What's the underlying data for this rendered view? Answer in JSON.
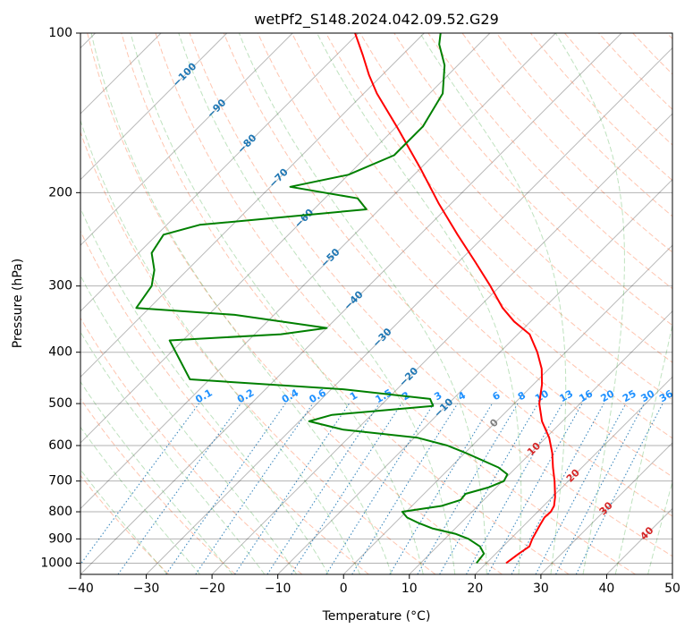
{
  "chart_data": {
    "type": "skew-t",
    "title": "wetPf2_S148.2024.042.09.52.G29",
    "xlabel": "Temperature (°C)",
    "ylabel": "Pressure (hPa)",
    "xlim": [
      -40,
      50
    ],
    "ylim": [
      1050,
      100
    ],
    "y_scale": "log",
    "xticks": [
      "−40",
      "−30",
      "−20",
      "−10",
      "0",
      "10",
      "20",
      "30",
      "40",
      "50"
    ],
    "yticks": [
      "100",
      "200",
      "300",
      "400",
      "500",
      "600",
      "700",
      "800",
      "900",
      "1000"
    ],
    "grid": true,
    "temperature_profile": {
      "color": "#ff0000",
      "points": [
        [
          1000,
          23
        ],
        [
          960,
          23.5
        ],
        [
          930,
          24
        ],
        [
          900,
          23.3
        ],
        [
          850,
          22.4
        ],
        [
          820,
          21.9
        ],
        [
          800,
          22
        ],
        [
          780,
          21.6
        ],
        [
          750,
          20.4
        ],
        [
          700,
          17.9
        ],
        [
          660,
          15.6
        ],
        [
          620,
          13.3
        ],
        [
          580,
          10.5
        ],
        [
          540,
          6.9
        ],
        [
          500,
          3.8
        ],
        [
          460,
          1.3
        ],
        [
          430,
          -1.1
        ],
        [
          400,
          -4.3
        ],
        [
          370,
          -8.2
        ],
        [
          350,
          -12.5
        ],
        [
          330,
          -16.3
        ],
        [
          300,
          -21.5
        ],
        [
          270,
          -27.5
        ],
        [
          240,
          -34.3
        ],
        [
          210,
          -41.8
        ],
        [
          180,
          -50
        ],
        [
          150,
          -60
        ],
        [
          130,
          -68
        ],
        [
          120,
          -72
        ],
        [
          110,
          -76
        ],
        [
          100,
          -80.5
        ]
      ]
    },
    "dewpoint_profile": {
      "color": "#008000",
      "points": [
        [
          1000,
          18.5
        ],
        [
          960,
          18.2
        ],
        [
          930,
          16.5
        ],
        [
          900,
          13.6
        ],
        [
          880,
          10.8
        ],
        [
          860,
          6.5
        ],
        [
          840,
          3.6
        ],
        [
          820,
          1
        ],
        [
          800,
          -0.6
        ],
        [
          780,
          4.5
        ],
        [
          760,
          6.5
        ],
        [
          740,
          6.3
        ],
        [
          720,
          8.8
        ],
        [
          700,
          10.2
        ],
        [
          680,
          9.7
        ],
        [
          660,
          7.3
        ],
        [
          620,
          0.2
        ],
        [
          600,
          -3.8
        ],
        [
          580,
          -9.5
        ],
        [
          560,
          -22
        ],
        [
          540,
          -28.5
        ],
        [
          525,
          -26
        ],
        [
          505,
          -12
        ],
        [
          490,
          -13.5
        ],
        [
          470,
          -28
        ],
        [
          450,
          -53
        ],
        [
          380,
          -62
        ],
        [
          370,
          -46
        ],
        [
          360,
          -40
        ],
        [
          340,
          -56
        ],
        [
          330,
          -72
        ],
        [
          300,
          -73
        ],
        [
          280,
          -75
        ],
        [
          260,
          -78
        ],
        [
          240,
          -79
        ],
        [
          230,
          -75
        ],
        [
          215,
          -52
        ],
        [
          205,
          -55
        ],
        [
          195,
          -67
        ],
        [
          185,
          -60
        ],
        [
          170,
          -56
        ],
        [
          150,
          -56
        ],
        [
          130,
          -58
        ],
        [
          115,
          -62
        ],
        [
          105,
          -66
        ],
        [
          100,
          -67.5
        ]
      ]
    },
    "dry_adiabats_labels": [
      "−100",
      "−90",
      "−80",
      "−70",
      "−60",
      "−50",
      "−40",
      "−30",
      "−20",
      "−10",
      "0",
      "10",
      "20",
      "30",
      "40"
    ],
    "mixing_ratio_labels": [
      "0.1",
      "0.2",
      "0.4",
      "0.6",
      "1",
      "1.5",
      "2",
      "3",
      "4",
      "6",
      "8",
      "10",
      "13",
      "16",
      "20",
      "25",
      "30",
      "36"
    ]
  }
}
